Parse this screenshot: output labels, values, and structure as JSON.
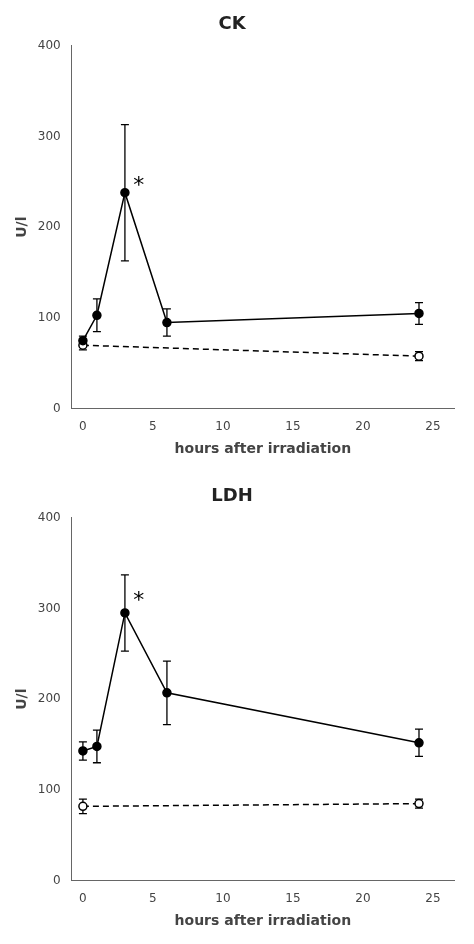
{
  "chart_data": [
    {
      "type": "line",
      "title": "CK",
      "xlabel": "hours after irradiation",
      "ylabel": "U/l",
      "series": [
        {
          "x": [
            0,
            1,
            3,
            6,
            24
          ],
          "values": [
            75,
            103,
            238,
            95,
            105
          ],
          "errors": [
            5,
            18,
            75,
            15,
            12
          ],
          "color": "#000000",
          "line_style": "solid",
          "marker": "circle"
        },
        {
          "x": [
            0,
            24
          ],
          "values": [
            70,
            58
          ],
          "errors": [
            5,
            5
          ],
          "color": "#000000",
          "line_style": "dashed",
          "marker": "open_circle"
        }
      ],
      "annotations": [
        {
          "text": "*",
          "x": 3.6,
          "y": 245
        }
      ],
      "xlim": [
        -0.8,
        26.5
      ],
      "xticks": [
        0,
        5,
        10,
        15,
        20,
        25
      ],
      "ylim": [
        0,
        400
      ],
      "yticks": [
        0,
        100,
        200,
        300,
        400
      ],
      "grid": false
    },
    {
      "type": "line",
      "title": "LDH",
      "xlabel": "hours after irradiation",
      "ylabel": "U/l",
      "series": [
        {
          "x": [
            0,
            1,
            3,
            6,
            24
          ],
          "values": [
            143,
            148,
            295,
            207,
            152
          ],
          "errors": [
            10,
            18,
            42,
            35,
            15
          ],
          "color": "#000000",
          "line_style": "solid",
          "marker": "circle"
        },
        {
          "x": [
            0,
            24
          ],
          "values": [
            82,
            85
          ],
          "errors": [
            8,
            5
          ],
          "color": "#000000",
          "line_style": "dashed",
          "marker": "open_circle"
        }
      ],
      "annotations": [
        {
          "text": "*",
          "x": 3.6,
          "y": 308
        }
      ],
      "xlim": [
        -0.8,
        26.5
      ],
      "xticks": [
        0,
        5,
        10,
        15,
        20,
        25
      ],
      "ylim": [
        0,
        400
      ],
      "yticks": [
        0,
        100,
        200,
        300,
        400
      ],
      "grid": false
    }
  ]
}
